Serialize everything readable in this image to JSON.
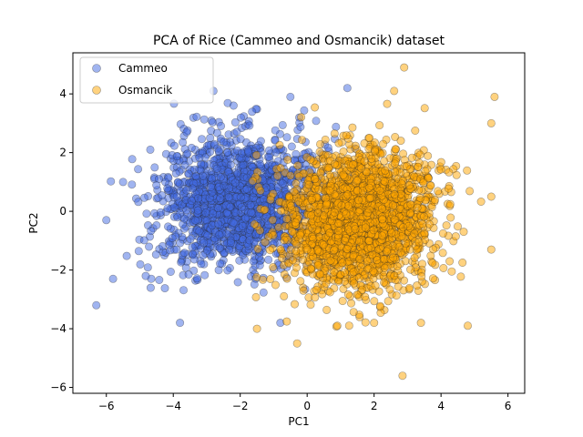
{
  "chart_data": {
    "type": "scatter",
    "title": "PCA of Rice (Cammeo and Osmancik) dataset",
    "xlabel": "PC1",
    "ylabel": "PC2",
    "xlim": [
      -7,
      6.5
    ],
    "ylim": [
      -6.2,
      5.4
    ],
    "xticks": [
      -6,
      -4,
      -2,
      0,
      2,
      4,
      6
    ],
    "yticks": [
      -6,
      -4,
      -2,
      0,
      2,
      4
    ],
    "grid": false,
    "legend_position": "top-left",
    "series": [
      {
        "name": "Cammeo",
        "color": "#4169e1",
        "count": 1630,
        "center": [
          -2.1,
          0.3
        ],
        "spread": [
          1.2,
          1.1
        ],
        "clip_x": [
          -6.5,
          1.5
        ],
        "clip_y": [
          -4.2,
          4.2
        ],
        "outliers": [
          [
            -6.3,
            -3.2
          ],
          [
            -5.8,
            -2.3
          ],
          [
            -2.8,
            4.1
          ],
          [
            1.2,
            4.2
          ],
          [
            -3.8,
            -3.8
          ],
          [
            -5.5,
            1.0
          ],
          [
            -0.8,
            -3.8
          ],
          [
            -2.2,
            3.6
          ],
          [
            -0.5,
            3.9
          ],
          [
            -6.0,
            -0.3
          ]
        ]
      },
      {
        "name": "Osmancik",
        "color": "#ffa500",
        "count": 2180,
        "center": [
          1.6,
          -0.3
        ],
        "spread": [
          1.15,
          1.15
        ],
        "clip_x": [
          -1.8,
          5.6
        ],
        "clip_y": [
          -4.6,
          4.4
        ],
        "outliers": [
          [
            2.9,
            4.9
          ],
          [
            2.85,
            -5.6
          ],
          [
            5.6,
            3.9
          ],
          [
            4.8,
            -3.9
          ],
          [
            -0.3,
            -4.5
          ],
          [
            -1.5,
            -4.0
          ],
          [
            3.4,
            -3.8
          ],
          [
            2.6,
            4.1
          ],
          [
            5.5,
            0.5
          ],
          [
            5.5,
            3.0
          ],
          [
            2.0,
            -3.8
          ],
          [
            0.9,
            -3.9
          ]
        ]
      }
    ]
  }
}
